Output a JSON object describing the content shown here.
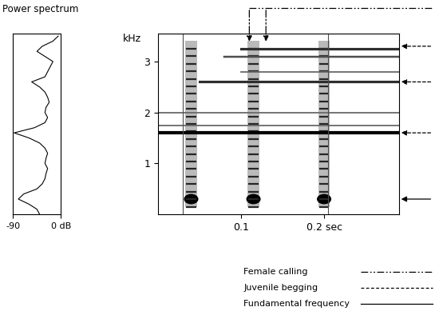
{
  "chart_data": [
    {
      "type": "line",
      "title": "Power spectrum",
      "orientation": "horizontal",
      "color": "#000000",
      "frequencies": [
        0.0,
        0.1,
        0.2,
        0.3,
        0.4,
        0.5,
        0.6,
        0.7,
        0.8,
        0.9,
        1.0,
        1.1,
        1.2,
        1.3,
        1.4,
        1.5,
        1.6,
        1.7,
        1.8,
        1.9,
        2.0,
        2.1,
        2.2,
        2.3,
        2.4,
        2.5,
        2.6,
        2.7,
        2.8,
        2.9,
        3.0,
        3.1,
        3.2,
        3.3,
        3.4,
        3.5
      ],
      "values": [
        -40,
        -45,
        -60,
        -80,
        -70,
        -45,
        -35,
        -30,
        -28,
        -25,
        -30,
        -28,
        -25,
        -30,
        -40,
        -60,
        -88,
        -50,
        -30,
        -25,
        -30,
        -28,
        -22,
        -25,
        -30,
        -40,
        -55,
        -30,
        -25,
        -20,
        -15,
        -30,
        -45,
        -35,
        -15,
        -5
      ],
      "xlim": [
        -90,
        0
      ],
      "xticks": [
        -90,
        {
          "value": 0,
          "label": "0 dB"
        }
      ],
      "ylim": [
        0,
        3.55
      ],
      "tick_labels": "x"
    },
    {
      "type": "spectrogram",
      "y_label": "kHz",
      "xlim": [
        0,
        0.29
      ],
      "xticks": [
        0.1,
        {
          "value": 0.2,
          "label": "0.2 sec"
        }
      ],
      "ylim": [
        0,
        3.55
      ],
      "yticks": [
        1,
        2,
        3
      ],
      "boundaries": [
        0.03,
        0.205
      ],
      "pulses": {
        "times": [
          0.04,
          0.115,
          0.2
        ],
        "low": 0.15,
        "high": 3.4
      },
      "bands": [
        {
          "frequency": 1.6,
          "from": 0.0,
          "to": 0.29,
          "level": 1.0
        },
        {
          "frequency": 2.6,
          "from": 0.05,
          "to": 0.29,
          "level": 0.7
        },
        {
          "frequency": 3.25,
          "from": 0.1,
          "to": 0.29,
          "level": 0.7
        },
        {
          "frequency": 3.1,
          "from": 0.08,
          "to": 0.29,
          "level": 0.5
        },
        {
          "frequency": 2.0,
          "from": 0.0,
          "to": 0.29,
          "level": 0.3
        },
        {
          "frequency": 2.8,
          "from": 0.1,
          "to": 0.29,
          "level": 0.3
        },
        {
          "frequency": 1.75,
          "from": 0.0,
          "to": 0.29,
          "level": 0.3
        }
      ],
      "series": [
        {
          "name": "Female calling",
          "line_style": "dashdot",
          "x": [
            0.11,
            0.13
          ],
          "y": [
            3.35,
            3.35
          ]
        },
        {
          "name": "Juvenile begging",
          "line_style": "dashed",
          "y": [
            3.3,
            2.6,
            1.6
          ]
        },
        {
          "name": "Fundamental frequency",
          "line_style": "solid",
          "y": [
            0.3
          ]
        }
      ]
    }
  ]
}
